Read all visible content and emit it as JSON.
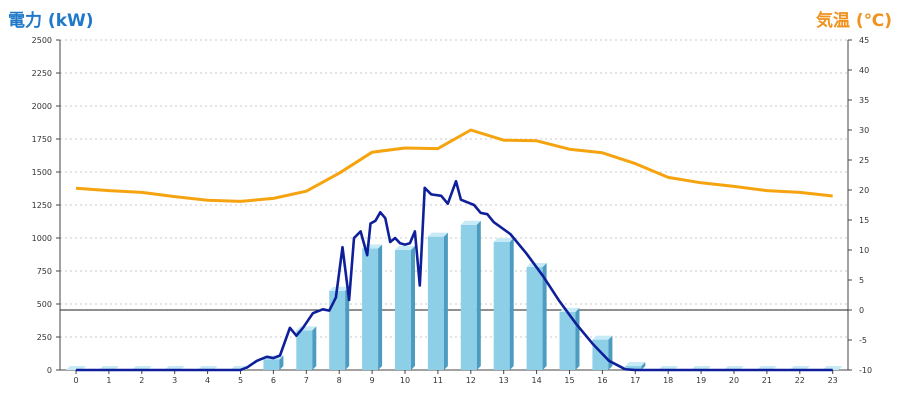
{
  "chart_data": {
    "type": "bar",
    "left_axis_title": "電力 (kW)",
    "right_axis_title": "気温 (℃)",
    "categories": [
      "0",
      "1",
      "2",
      "3",
      "4",
      "5",
      "6",
      "7",
      "8",
      "9",
      "10",
      "11",
      "12",
      "13",
      "14",
      "15",
      "16",
      "17",
      "18",
      "19",
      "20",
      "21",
      "22",
      "23"
    ],
    "left_ticks": [
      "0",
      "250",
      "500",
      "750",
      "1000",
      "1250",
      "1500",
      "1750",
      "2000",
      "2250",
      "2500"
    ],
    "right_ticks": [
      "-10",
      "-5",
      "0",
      "5",
      "10",
      "15",
      "20",
      "25",
      "30",
      "35",
      "40",
      "45"
    ],
    "ylim_left": [
      0,
      2500
    ],
    "ylim_right": [
      -10,
      45
    ],
    "grid": true,
    "bar_series": {
      "values": [
        0,
        0,
        0,
        0,
        0,
        0,
        80,
        300,
        600,
        920,
        910,
        1010,
        1100,
        970,
        780,
        440,
        230,
        30,
        0,
        0,
        0,
        0,
        0,
        0
      ],
      "color": "#8ecfe8"
    },
    "actual_power": {
      "color": "#0f1f99",
      "points": [
        [
          0,
          0
        ],
        [
          1,
          0
        ],
        [
          2,
          0
        ],
        [
          3,
          0
        ],
        [
          4,
          0
        ],
        [
          5,
          0
        ],
        [
          5.2,
          20
        ],
        [
          5.5,
          70
        ],
        [
          5.8,
          100
        ],
        [
          6,
          90
        ],
        [
          6.2,
          110
        ],
        [
          6.5,
          320
        ],
        [
          6.7,
          260
        ],
        [
          6.9,
          320
        ],
        [
          7.2,
          430
        ],
        [
          7.5,
          460
        ],
        [
          7.7,
          450
        ],
        [
          7.9,
          550
        ],
        [
          8.1,
          930
        ],
        [
          8.3,
          530
        ],
        [
          8.45,
          1000
        ],
        [
          8.65,
          1050
        ],
        [
          8.85,
          870
        ],
        [
          8.95,
          1110
        ],
        [
          9.1,
          1130
        ],
        [
          9.25,
          1195
        ],
        [
          9.4,
          1150
        ],
        [
          9.55,
          970
        ],
        [
          9.7,
          1000
        ],
        [
          9.85,
          960
        ],
        [
          10,
          950
        ],
        [
          10.15,
          960
        ],
        [
          10.3,
          1050
        ],
        [
          10.45,
          640
        ],
        [
          10.6,
          1380
        ],
        [
          10.8,
          1330
        ],
        [
          11.1,
          1320
        ],
        [
          11.3,
          1260
        ],
        [
          11.55,
          1430
        ],
        [
          11.7,
          1290
        ],
        [
          12.1,
          1250
        ],
        [
          12.3,
          1190
        ],
        [
          12.5,
          1180
        ],
        [
          12.7,
          1120
        ],
        [
          13.2,
          1030
        ],
        [
          13.7,
          880
        ],
        [
          14.2,
          710
        ],
        [
          14.7,
          520
        ],
        [
          15.2,
          350
        ],
        [
          15.7,
          200
        ],
        [
          16.2,
          70
        ],
        [
          16.7,
          5
        ],
        [
          17,
          0
        ],
        [
          18,
          0
        ],
        [
          19,
          0
        ],
        [
          20,
          0
        ],
        [
          21,
          0
        ],
        [
          22,
          0
        ],
        [
          23,
          0
        ]
      ]
    },
    "temperature": {
      "color": "#f5a30f",
      "points": [
        [
          0,
          20.3
        ],
        [
          1,
          19.9
        ],
        [
          2,
          19.6
        ],
        [
          3,
          18.9
        ],
        [
          4,
          18.3
        ],
        [
          5,
          18.1
        ],
        [
          6,
          18.6
        ],
        [
          7,
          19.8
        ],
        [
          8,
          22.8
        ],
        [
          9,
          26.3
        ],
        [
          10,
          27.0
        ],
        [
          11,
          26.9
        ],
        [
          12,
          30.0
        ],
        [
          13,
          28.3
        ],
        [
          14,
          28.2
        ],
        [
          15,
          26.8
        ],
        [
          16,
          26.2
        ],
        [
          17,
          24.4
        ],
        [
          18,
          22.1
        ],
        [
          19,
          21.2
        ],
        [
          20,
          20.6
        ],
        [
          21,
          19.9
        ],
        [
          22,
          19.6
        ],
        [
          23,
          19.0
        ]
      ]
    }
  }
}
